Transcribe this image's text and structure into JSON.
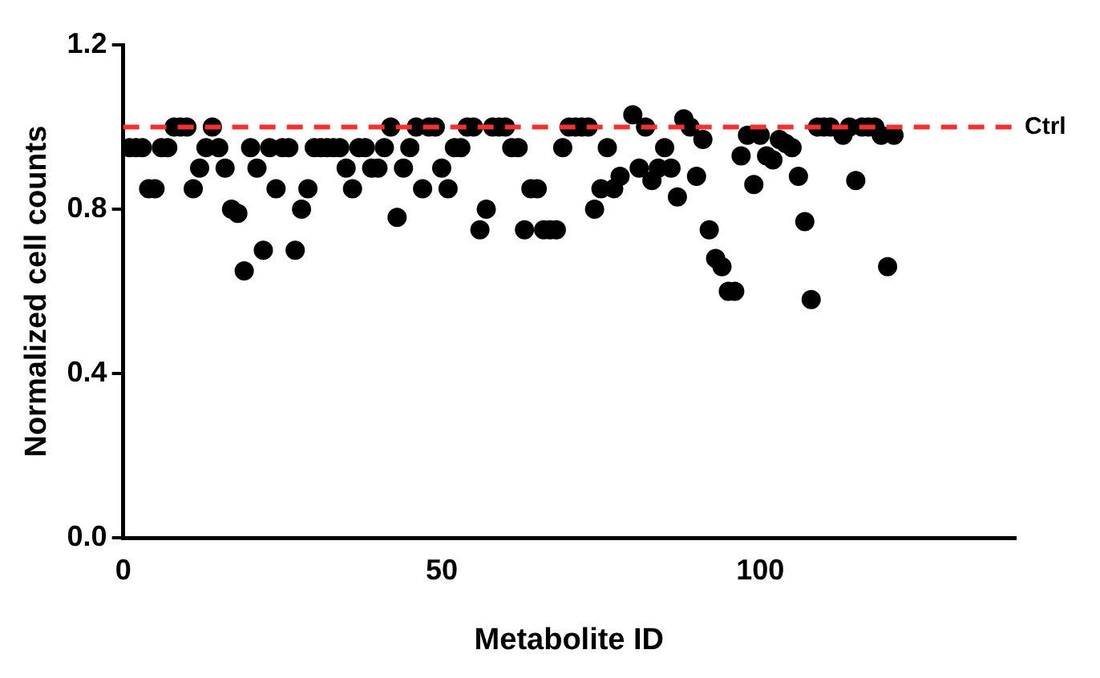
{
  "chart_data": {
    "type": "scatter",
    "xlabel": "Metabolite ID",
    "ylabel": "Normalized cell counts",
    "x": [
      1,
      2,
      3,
      4,
      5,
      6,
      7,
      8,
      9,
      10,
      11,
      12,
      13,
      14,
      15,
      16,
      17,
      18,
      19,
      20,
      21,
      22,
      23,
      24,
      25,
      26,
      27,
      28,
      29,
      30,
      31,
      32,
      33,
      34,
      35,
      36,
      37,
      38,
      39,
      40,
      41,
      42,
      43,
      44,
      45,
      46,
      47,
      48,
      49,
      50,
      51,
      52,
      53,
      54,
      55,
      56,
      57,
      58,
      59,
      60,
      61,
      62,
      63,
      64,
      65,
      66,
      67,
      68,
      69,
      70,
      71,
      72,
      73,
      74,
      75,
      76,
      77,
      78,
      80,
      81,
      82,
      83,
      84,
      85,
      86,
      87,
      88,
      89,
      90,
      91,
      92,
      93,
      94,
      95,
      96,
      97,
      98,
      99,
      100,
      101,
      102,
      103,
      104,
      105,
      106,
      107,
      108,
      109,
      110,
      111,
      113,
      114,
      115,
      116,
      117,
      118,
      119,
      120,
      121
    ],
    "series": [
      {
        "color": "#000000",
        "values": [
          0.95,
          0.95,
          0.95,
          0.85,
          0.85,
          0.95,
          0.95,
          1.0,
          1.0,
          1.0,
          0.85,
          0.9,
          0.95,
          1.0,
          0.95,
          0.9,
          0.8,
          0.79,
          0.65,
          0.95,
          0.9,
          0.7,
          0.95,
          0.85,
          0.95,
          0.95,
          0.7,
          0.8,
          0.85,
          0.95,
          0.95,
          0.95,
          0.95,
          0.95,
          0.9,
          0.85,
          0.95,
          0.95,
          0.9,
          0.9,
          0.95,
          1.0,
          0.78,
          0.9,
          0.95,
          1.0,
          0.85,
          1.0,
          1.0,
          0.9,
          0.85,
          0.95,
          0.95,
          1.0,
          1.0,
          0.75,
          0.8,
          1.0,
          1.0,
          1.0,
          0.95,
          0.95,
          0.75,
          0.85,
          0.85,
          0.75,
          0.75,
          0.75,
          0.95,
          1.0,
          1.0,
          1.0,
          1.0,
          0.8,
          0.85,
          0.95,
          0.85,
          0.88,
          1.03,
          0.9,
          1.0,
          0.87,
          0.9,
          0.95,
          0.9,
          0.83,
          1.02,
          1.0,
          0.88,
          0.97,
          0.75,
          0.68,
          0.66,
          0.6,
          0.6,
          0.93,
          0.98,
          0.86,
          0.98,
          0.93,
          0.92,
          0.97,
          0.96,
          0.95,
          0.88,
          0.77,
          0.58,
          1.0,
          1.0,
          1.0,
          0.98,
          1.0,
          0.87,
          1.0,
          1.0,
          1.0,
          0.98,
          0.66,
          0.98
        ]
      }
    ],
    "xlim": [
      0,
      140
    ],
    "xticks": [
      0,
      50,
      100
    ],
    "ylim": [
      0,
      1.2
    ],
    "yticks": [
      {
        "value": 0,
        "label": "0.0"
      },
      {
        "value": 0.4,
        "label": "0.4"
      },
      {
        "value": 0.8,
        "label": "0.8"
      },
      {
        "value": 1.2,
        "label": "1.2"
      }
    ],
    "ref_lines": [
      {
        "axis": "y",
        "value": 1.0,
        "label": "Ctrl",
        "color": "#ee3333",
        "line_style": "dashed"
      }
    ],
    "marker": "circle",
    "grid": false,
    "legend": false
  }
}
